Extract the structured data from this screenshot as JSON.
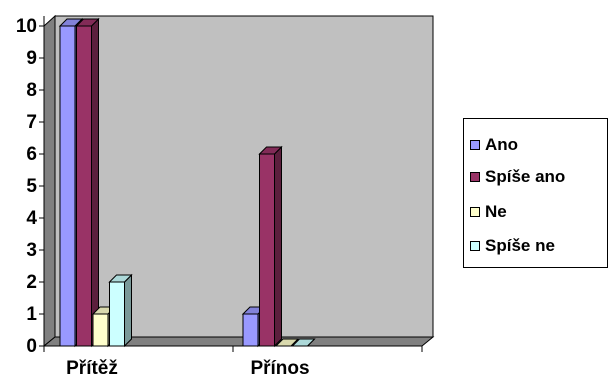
{
  "chart_data": {
    "type": "bar",
    "categories": [
      "Přítěž",
      "Přínos"
    ],
    "series": [
      {
        "name": "Ano",
        "values": [
          10,
          1
        ],
        "color": "#9999ff"
      },
      {
        "name": "Spíše ano",
        "values": [
          10,
          6
        ],
        "color": "#993366"
      },
      {
        "name": "Ne",
        "values": [
          1,
          0
        ],
        "color": "#ffffcc"
      },
      {
        "name": "Spíše ne",
        "values": [
          2,
          0
        ],
        "color": "#ccffff"
      }
    ],
    "yticks": [
      "0",
      "1",
      "2",
      "3",
      "4",
      "5",
      "6",
      "7",
      "8",
      "9",
      "10"
    ],
    "ylim": [
      0,
      10
    ],
    "plot_background": "#c0c0c0",
    "legend_position": "right",
    "grid": false,
    "style": "3d-column"
  }
}
